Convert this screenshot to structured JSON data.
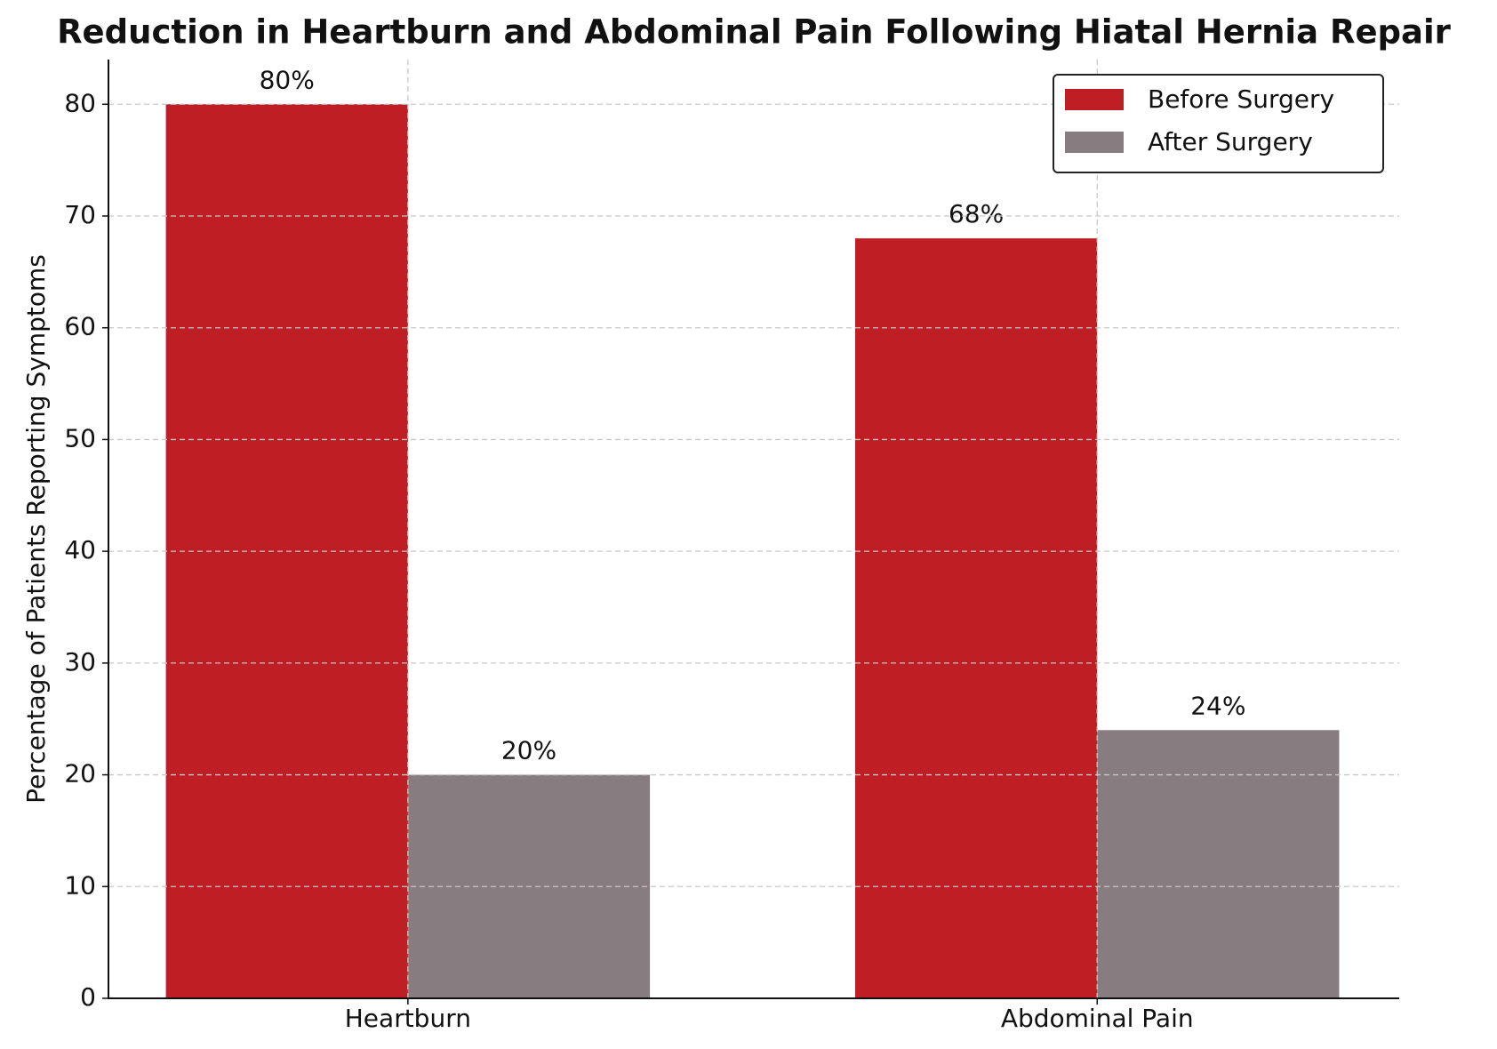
{
  "chart_data": {
    "type": "bar",
    "title": "Reduction in Heartburn and Abdominal Pain Following Hiatal Hernia Repair",
    "y_label": "Percentage of Patients Reporting Symptoms",
    "categories": [
      "Heartburn",
      "Abdominal Pain"
    ],
    "series": [
      {
        "name": "Before Surgery",
        "color": "#be1e24",
        "values": [
          80,
          68
        ],
        "value_labels": [
          "80%",
          "68%"
        ]
      },
      {
        "name": "After Surgery",
        "color": "#877d80",
        "values": [
          20,
          24
        ],
        "value_labels": [
          "20%",
          "24%"
        ]
      }
    ],
    "ylim": [
      0,
      84
    ],
    "yticks": [
      0,
      10,
      20,
      30,
      40,
      50,
      60,
      70,
      80
    ],
    "grid": true,
    "legend": "upper right"
  }
}
